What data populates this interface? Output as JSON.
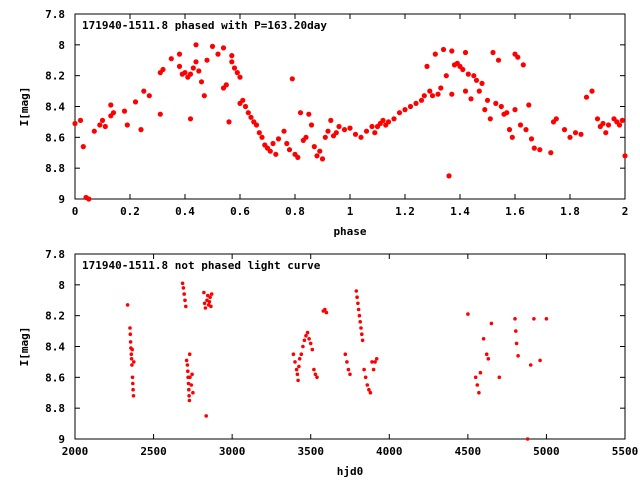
{
  "chart_data": [
    {
      "type": "scatter",
      "title": "171940-1511.8 phased with P=163.20day",
      "xlabel": "phase",
      "ylabel": "I[mag]",
      "xlim": [
        0,
        2
      ],
      "ylim": [
        9,
        7.8
      ],
      "x_ticks": [
        "0",
        "0.2",
        "0.4",
        "0.6",
        "0.8",
        "1",
        "1.2",
        "1.4",
        "1.6",
        "1.8",
        "2"
      ],
      "y_ticks": [
        "7.8",
        "8",
        "8.2",
        "8.4",
        "8.6",
        "8.8",
        "9"
      ],
      "marker_color": "#ff0000",
      "grid": false,
      "points": [
        [
          0.0,
          8.51
        ],
        [
          0.02,
          8.49
        ],
        [
          0.03,
          8.66
        ],
        [
          0.04,
          8.99
        ],
        [
          0.05,
          9.0
        ],
        [
          0.07,
          8.56
        ],
        [
          0.09,
          8.52
        ],
        [
          0.1,
          8.49
        ],
        [
          0.11,
          8.53
        ],
        [
          0.13,
          8.46
        ],
        [
          0.13,
          8.39
        ],
        [
          0.14,
          8.44
        ],
        [
          0.18,
          8.43
        ],
        [
          0.19,
          8.52
        ],
        [
          0.22,
          8.37
        ],
        [
          0.24,
          8.55
        ],
        [
          0.25,
          8.3
        ],
        [
          0.27,
          8.33
        ],
        [
          0.31,
          8.45
        ],
        [
          0.31,
          8.18
        ],
        [
          0.32,
          8.16
        ],
        [
          0.35,
          8.09
        ],
        [
          0.38,
          8.06
        ],
        [
          0.38,
          8.14
        ],
        [
          0.39,
          8.19
        ],
        [
          0.4,
          8.18
        ],
        [
          0.41,
          8.21
        ],
        [
          0.42,
          8.48
        ],
        [
          0.42,
          8.19
        ],
        [
          0.43,
          8.15
        ],
        [
          0.44,
          8.11
        ],
        [
          0.44,
          8.0
        ],
        [
          0.45,
          8.17
        ],
        [
          0.46,
          8.24
        ],
        [
          0.47,
          8.33
        ],
        [
          0.48,
          8.1
        ],
        [
          0.5,
          8.01
        ],
        [
          0.52,
          8.06
        ],
        [
          0.54,
          8.02
        ],
        [
          0.54,
          8.28
        ],
        [
          0.55,
          8.26
        ],
        [
          0.56,
          8.5
        ],
        [
          0.57,
          8.07
        ],
        [
          0.57,
          8.11
        ],
        [
          0.58,
          8.15
        ],
        [
          0.59,
          8.18
        ],
        [
          0.6,
          8.38
        ],
        [
          0.6,
          8.21
        ],
        [
          0.61,
          8.36
        ],
        [
          0.62,
          8.4
        ],
        [
          0.63,
          8.44
        ],
        [
          0.64,
          8.47
        ],
        [
          0.65,
          8.5
        ],
        [
          0.66,
          8.52
        ],
        [
          0.67,
          8.57
        ],
        [
          0.68,
          8.6
        ],
        [
          0.69,
          8.65
        ],
        [
          0.7,
          8.67
        ],
        [
          0.71,
          8.69
        ],
        [
          0.72,
          8.64
        ],
        [
          0.73,
          8.71
        ],
        [
          0.74,
          8.61
        ],
        [
          0.76,
          8.56
        ],
        [
          0.77,
          8.64
        ],
        [
          0.78,
          8.68
        ],
        [
          0.79,
          8.22
        ],
        [
          0.8,
          8.71
        ],
        [
          0.81,
          8.73
        ],
        [
          0.82,
          8.44
        ],
        [
          0.83,
          8.62
        ],
        [
          0.84,
          8.6
        ],
        [
          0.85,
          8.45
        ],
        [
          0.86,
          8.52
        ],
        [
          0.87,
          8.66
        ],
        [
          0.88,
          8.72
        ],
        [
          0.89,
          8.69
        ],
        [
          0.9,
          8.74
        ],
        [
          0.91,
          8.6
        ],
        [
          0.92,
          8.56
        ],
        [
          0.93,
          8.49
        ],
        [
          0.94,
          8.59
        ],
        [
          0.95,
          8.57
        ],
        [
          0.96,
          8.53
        ],
        [
          0.98,
          8.55
        ],
        [
          1.0,
          8.54
        ],
        [
          1.02,
          8.58
        ],
        [
          1.04,
          8.6
        ],
        [
          1.06,
          8.56
        ],
        [
          1.08,
          8.53
        ],
        [
          1.09,
          8.57
        ],
        [
          1.1,
          8.53
        ],
        [
          1.11,
          8.51
        ],
        [
          1.12,
          8.49
        ],
        [
          1.13,
          8.52
        ],
        [
          1.14,
          8.5
        ],
        [
          1.16,
          8.48
        ],
        [
          1.18,
          8.44
        ],
        [
          1.2,
          8.42
        ],
        [
          1.22,
          8.4
        ],
        [
          1.24,
          8.38
        ],
        [
          1.26,
          8.36
        ],
        [
          1.27,
          8.33
        ],
        [
          1.28,
          8.14
        ],
        [
          1.29,
          8.3
        ],
        [
          1.3,
          8.33
        ],
        [
          1.31,
          8.06
        ],
        [
          1.32,
          8.32
        ],
        [
          1.33,
          8.28
        ],
        [
          1.34,
          8.03
        ],
        [
          1.35,
          8.2
        ],
        [
          1.36,
          8.85
        ],
        [
          1.37,
          8.04
        ],
        [
          1.37,
          8.32
        ],
        [
          1.38,
          8.13
        ],
        [
          1.39,
          8.12
        ],
        [
          1.4,
          8.14
        ],
        [
          1.41,
          8.16
        ],
        [
          1.42,
          8.05
        ],
        [
          1.42,
          8.3
        ],
        [
          1.43,
          8.19
        ],
        [
          1.44,
          8.35
        ],
        [
          1.45,
          8.2
        ],
        [
          1.46,
          8.23
        ],
        [
          1.47,
          8.3
        ],
        [
          1.48,
          8.25
        ],
        [
          1.49,
          8.42
        ],
        [
          1.5,
          8.36
        ],
        [
          1.51,
          8.48
        ],
        [
          1.52,
          8.05
        ],
        [
          1.53,
          8.38
        ],
        [
          1.54,
          8.1
        ],
        [
          1.55,
          8.4
        ],
        [
          1.56,
          8.45
        ],
        [
          1.57,
          8.44
        ],
        [
          1.58,
          8.55
        ],
        [
          1.59,
          8.6
        ],
        [
          1.6,
          8.06
        ],
        [
          1.6,
          8.42
        ],
        [
          1.61,
          8.08
        ],
        [
          1.62,
          8.52
        ],
        [
          1.63,
          8.13
        ],
        [
          1.64,
          8.55
        ],
        [
          1.65,
          8.39
        ],
        [
          1.66,
          8.61
        ],
        [
          1.67,
          8.67
        ],
        [
          1.69,
          8.68
        ],
        [
          1.73,
          8.7
        ],
        [
          1.74,
          8.5
        ],
        [
          1.75,
          8.48
        ],
        [
          1.78,
          8.55
        ],
        [
          1.8,
          8.6
        ],
        [
          1.82,
          8.57
        ],
        [
          1.84,
          8.58
        ],
        [
          1.86,
          8.34
        ],
        [
          1.88,
          8.3
        ],
        [
          1.9,
          8.48
        ],
        [
          1.91,
          8.53
        ],
        [
          1.92,
          8.51
        ],
        [
          1.93,
          8.57
        ],
        [
          1.94,
          8.52
        ],
        [
          1.96,
          8.48
        ],
        [
          1.97,
          8.5
        ],
        [
          1.98,
          8.52
        ],
        [
          1.99,
          8.49
        ],
        [
          2.0,
          8.72
        ]
      ]
    },
    {
      "type": "scatter",
      "title": "171940-1511.8 not phased light curve",
      "xlabel": "hjd0",
      "ylabel": "I[mag]",
      "xlim": [
        2000,
        5500
      ],
      "ylim": [
        9,
        7.8
      ],
      "x_ticks": [
        "2000",
        "2500",
        "3000",
        "3500",
        "4000",
        "4500",
        "5000",
        "5500"
      ],
      "y_ticks": [
        "7.8",
        "8",
        "8.2",
        "8.4",
        "8.6",
        "8.8",
        "9"
      ],
      "marker_color": "#ff0000",
      "grid": false,
      "points": [
        [
          2335,
          8.13
        ],
        [
          2350,
          8.28
        ],
        [
          2352,
          8.32
        ],
        [
          2354,
          8.37
        ],
        [
          2356,
          8.41
        ],
        [
          2358,
          8.45
        ],
        [
          2360,
          8.48
        ],
        [
          2362,
          8.52
        ],
        [
          2364,
          8.42
        ],
        [
          2366,
          8.6
        ],
        [
          2368,
          8.64
        ],
        [
          2370,
          8.68
        ],
        [
          2372,
          8.72
        ],
        [
          2374,
          8.5
        ],
        [
          2685,
          7.99
        ],
        [
          2690,
          8.02
        ],
        [
          2695,
          8.06
        ],
        [
          2700,
          8.1
        ],
        [
          2705,
          8.14
        ],
        [
          2710,
          8.49
        ],
        [
          2715,
          8.52
        ],
        [
          2718,
          8.56
        ],
        [
          2720,
          8.6
        ],
        [
          2722,
          8.64
        ],
        [
          2724,
          8.68
        ],
        [
          2726,
          8.72
        ],
        [
          2728,
          8.75
        ],
        [
          2730,
          8.45
        ],
        [
          2732,
          8.6
        ],
        [
          2740,
          8.65
        ],
        [
          2745,
          8.58
        ],
        [
          2750,
          8.7
        ],
        [
          2820,
          8.05
        ],
        [
          2825,
          8.12
        ],
        [
          2830,
          8.15
        ],
        [
          2835,
          8.85
        ],
        [
          2840,
          8.1
        ],
        [
          2845,
          8.07
        ],
        [
          2850,
          8.13
        ],
        [
          2855,
          8.11
        ],
        [
          2860,
          8.08
        ],
        [
          2865,
          8.14
        ],
        [
          2870,
          8.06
        ],
        [
          3390,
          8.45
        ],
        [
          3400,
          8.5
        ],
        [
          3410,
          8.55
        ],
        [
          3415,
          8.58
        ],
        [
          3420,
          8.62
        ],
        [
          3425,
          8.53
        ],
        [
          3430,
          8.48
        ],
        [
          3440,
          8.45
        ],
        [
          3450,
          8.4
        ],
        [
          3460,
          8.36
        ],
        [
          3470,
          8.33
        ],
        [
          3480,
          8.31
        ],
        [
          3490,
          8.35
        ],
        [
          3500,
          8.38
        ],
        [
          3510,
          8.42
        ],
        [
          3520,
          8.55
        ],
        [
          3530,
          8.58
        ],
        [
          3540,
          8.6
        ],
        [
          3580,
          8.17
        ],
        [
          3590,
          8.16
        ],
        [
          3600,
          8.18
        ],
        [
          3720,
          8.45
        ],
        [
          3730,
          8.5
        ],
        [
          3740,
          8.55
        ],
        [
          3750,
          8.58
        ],
        [
          3790,
          8.04
        ],
        [
          3795,
          8.08
        ],
        [
          3800,
          8.12
        ],
        [
          3805,
          8.16
        ],
        [
          3810,
          8.2
        ],
        [
          3815,
          8.24
        ],
        [
          3820,
          8.28
        ],
        [
          3825,
          8.32
        ],
        [
          3830,
          8.36
        ],
        [
          3840,
          8.55
        ],
        [
          3850,
          8.6
        ],
        [
          3860,
          8.65
        ],
        [
          3870,
          8.68
        ],
        [
          3880,
          8.7
        ],
        [
          3890,
          8.5
        ],
        [
          3900,
          8.55
        ],
        [
          3910,
          8.5
        ],
        [
          3920,
          8.48
        ],
        [
          4500,
          8.19
        ],
        [
          4550,
          8.6
        ],
        [
          4560,
          8.65
        ],
        [
          4570,
          8.7
        ],
        [
          4580,
          8.57
        ],
        [
          4600,
          8.35
        ],
        [
          4620,
          8.45
        ],
        [
          4630,
          8.48
        ],
        [
          4650,
          8.25
        ],
        [
          4700,
          8.6
        ],
        [
          4800,
          8.22
        ],
        [
          4805,
          8.3
        ],
        [
          4810,
          8.38
        ],
        [
          4820,
          8.46
        ],
        [
          4880,
          9.0
        ],
        [
          4900,
          8.52
        ],
        [
          4920,
          8.22
        ],
        [
          4960,
          8.49
        ],
        [
          5000,
          8.22
        ]
      ]
    }
  ]
}
